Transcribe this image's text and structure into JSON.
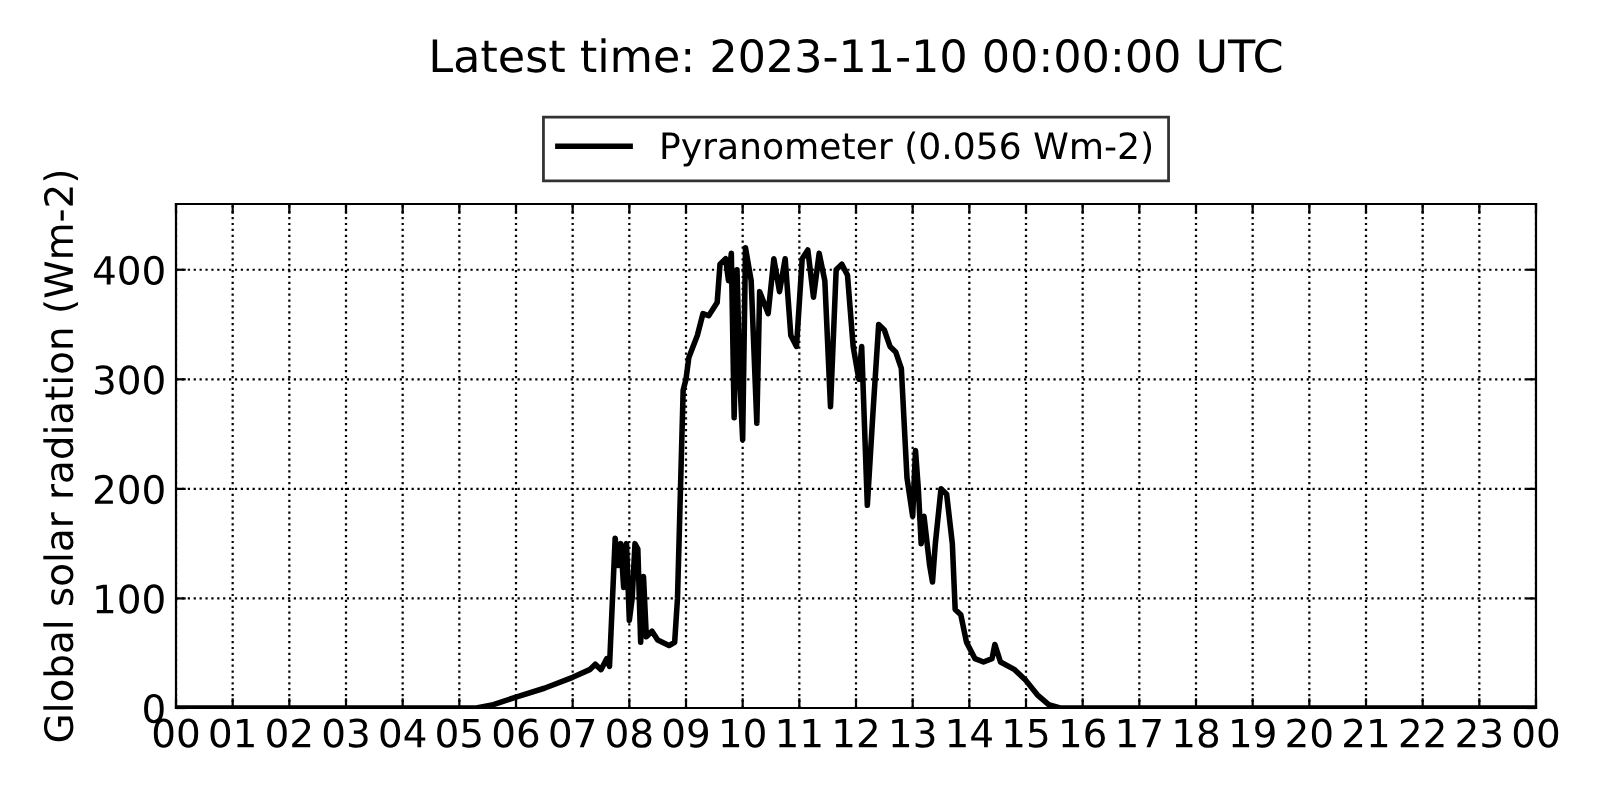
{
  "chart_data": {
    "type": "line",
    "title": "Latest time: 2023-11-10 00:00:00 UTC",
    "ylabel": "Global solar radiation (Wm-2)",
    "series": [
      {
        "name": "Pyranometer (0.056 Wm-2)",
        "color": "#000000",
        "x": [
          0,
          5.3,
          5.6,
          6.0,
          6.5,
          7.0,
          7.3,
          7.4,
          7.5,
          7.6,
          7.65,
          7.75,
          7.8,
          7.85,
          7.9,
          7.95,
          8.0,
          8.05,
          8.1,
          8.15,
          8.2,
          8.25,
          8.3,
          8.4,
          8.5,
          8.7,
          8.8,
          8.85,
          8.95,
          9.0,
          9.05,
          9.2,
          9.3,
          9.4,
          9.55,
          9.6,
          9.7,
          9.75,
          9.8,
          9.85,
          9.9,
          9.95,
          10.0,
          10.05,
          10.15,
          10.25,
          10.3,
          10.45,
          10.55,
          10.65,
          10.75,
          10.85,
          10.95,
          11.05,
          11.15,
          11.25,
          11.35,
          11.45,
          11.55,
          11.65,
          11.75,
          11.85,
          11.95,
          12.05,
          12.1,
          12.2,
          12.3,
          12.4,
          12.5,
          12.6,
          12.7,
          12.8,
          12.9,
          13.0,
          13.05,
          13.1,
          13.15,
          13.2,
          13.3,
          13.35,
          13.4,
          13.5,
          13.6,
          13.7,
          13.75,
          13.85,
          13.95,
          14.1,
          14.25,
          14.4,
          14.45,
          14.55,
          14.8,
          15.0,
          15.2,
          15.4,
          15.6,
          24
        ],
        "values": [
          0,
          0,
          3,
          10,
          18,
          28,
          35,
          40,
          35,
          45,
          38,
          155,
          130,
          150,
          110,
          150,
          80,
          100,
          150,
          145,
          60,
          120,
          65,
          70,
          62,
          57,
          60,
          100,
          290,
          300,
          320,
          340,
          360,
          358,
          370,
          405,
          410,
          390,
          415,
          265,
          400,
          300,
          245,
          420,
          390,
          260,
          380,
          360,
          410,
          380,
          410,
          340,
          330,
          410,
          418,
          375,
          415,
          390,
          275,
          400,
          405,
          395,
          330,
          300,
          330,
          185,
          270,
          350,
          345,
          330,
          325,
          310,
          210,
          175,
          235,
          200,
          150,
          175,
          130,
          115,
          150,
          200,
          195,
          150,
          90,
          85,
          60,
          45,
          42,
          45,
          58,
          42,
          35,
          25,
          12,
          3,
          0,
          0
        ]
      }
    ],
    "xlim": [
      0,
      24
    ],
    "xticks": [
      {
        "value": 0,
        "label": "00"
      },
      {
        "value": 1,
        "label": "01"
      },
      {
        "value": 2,
        "label": "02"
      },
      {
        "value": 3,
        "label": "03"
      },
      {
        "value": 4,
        "label": "04"
      },
      {
        "value": 5,
        "label": "05"
      },
      {
        "value": 6,
        "label": "06"
      },
      {
        "value": 7,
        "label": "07"
      },
      {
        "value": 8,
        "label": "08"
      },
      {
        "value": 9,
        "label": "09"
      },
      10,
      11,
      12,
      13,
      14,
      15,
      16,
      17,
      18,
      19,
      20,
      21,
      22,
      23,
      {
        "value": 24,
        "label": "00"
      }
    ],
    "ylim": [
      0,
      460
    ],
    "yticks": [
      0,
      100,
      200,
      300,
      400
    ],
    "grid": true,
    "legend": "top",
    "line_style": "solid",
    "marker": "none"
  }
}
